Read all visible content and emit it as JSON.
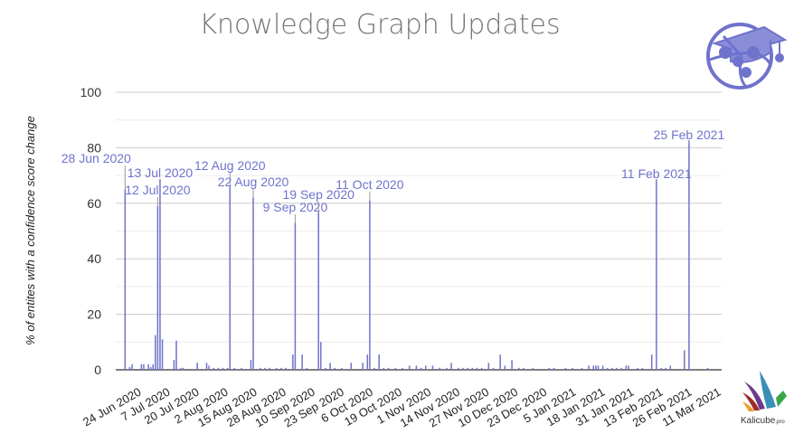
{
  "chart_data": {
    "type": "bar",
    "title": "Knowledge Graph Updates",
    "xlabel": "",
    "ylabel": "% of entites with a confidence score change",
    "ylim": [
      0,
      100
    ],
    "yticks": [
      0,
      20,
      40,
      60,
      80,
      100
    ],
    "xlim": [
      "2020-06-24",
      "2021-03-11"
    ],
    "xtick_labels": [
      "24 Jun 2020",
      "7 Jul 2020",
      "20 Jul 2020",
      "2 Aug 2020",
      "15 Aug 2020",
      "28 Aug 2020",
      "10 Sep 2020",
      "23 Sep 2020",
      "6 Oct 2020",
      "19 Oct 2020",
      "1 Nov 2020",
      "14 Nov 2020",
      "27 Nov 2020",
      "10 Dec 2020",
      "23 Dec 2020",
      "5 Jan 2021",
      "18 Jan 2021",
      "31 Jan 2021",
      "13 Feb 2021",
      "26 Feb 2021",
      "11 Mar 2021"
    ],
    "grid": true,
    "color": "#6f73cc",
    "annotations": [
      {
        "date": "2020-06-28",
        "label": "28 Jun 2020",
        "value": 65
      },
      {
        "date": "2020-07-12",
        "label": "12 Jul 2020",
        "value": 59
      },
      {
        "date": "2020-07-13",
        "label": "13 Jul 2020",
        "value": 68.7
      },
      {
        "date": "2020-08-12",
        "label": "12 Aug 2020",
        "value": 66
      },
      {
        "date": "2020-08-22",
        "label": "22 Aug 2020",
        "value": 62
      },
      {
        "date": "2020-09-09",
        "label": "9 Sep 2020",
        "value": 53
      },
      {
        "date": "2020-09-19",
        "label": "19 Sep 2020",
        "value": 56.7
      },
      {
        "date": "2020-10-11",
        "label": "11 Oct 2020",
        "value": 61
      },
      {
        "date": "2021-02-11",
        "label": "11 Feb 2021",
        "value": 68.7
      },
      {
        "date": "2021-02-25",
        "label": "25 Feb 2021",
        "value": 82.7
      }
    ],
    "points": [
      [
        "2020-06-30",
        1
      ],
      [
        "2020-07-01",
        2
      ],
      [
        "2020-07-05",
        2
      ],
      [
        "2020-07-06",
        2
      ],
      [
        "2020-07-08",
        2
      ],
      [
        "2020-07-09",
        1
      ],
      [
        "2020-07-10",
        2
      ],
      [
        "2020-07-11",
        12.5
      ],
      [
        "2020-07-14",
        11
      ],
      [
        "2020-07-19",
        3.5
      ],
      [
        "2020-07-20",
        10.5
      ],
      [
        "2020-07-22",
        0.7
      ],
      [
        "2020-07-23",
        0.7
      ],
      [
        "2020-07-29",
        2.5
      ],
      [
        "2020-08-02",
        2.5
      ],
      [
        "2020-08-03",
        1.5
      ],
      [
        "2020-08-05",
        0.7
      ],
      [
        "2020-08-07",
        0.7
      ],
      [
        "2020-08-09",
        0.7
      ],
      [
        "2020-08-11",
        0.7
      ],
      [
        "2020-08-14",
        0.7
      ],
      [
        "2020-08-17",
        0.7
      ],
      [
        "2020-08-21",
        3.5
      ],
      [
        "2020-08-25",
        0.7
      ],
      [
        "2020-08-27",
        0.7
      ],
      [
        "2020-08-29",
        0.7
      ],
      [
        "2020-09-01",
        0.7
      ],
      [
        "2020-09-03",
        0.7
      ],
      [
        "2020-09-05",
        0.7
      ],
      [
        "2020-09-08",
        5.5
      ],
      [
        "2020-09-12",
        5.5
      ],
      [
        "2020-09-14",
        0.7
      ],
      [
        "2020-09-20",
        10
      ],
      [
        "2020-09-22",
        0.7
      ],
      [
        "2020-09-24",
        2.5
      ],
      [
        "2020-09-26",
        0.7
      ],
      [
        "2020-09-29",
        0.7
      ],
      [
        "2020-10-03",
        2.5
      ],
      [
        "2020-10-08",
        2.5
      ],
      [
        "2020-10-10",
        5.5
      ],
      [
        "2020-10-13",
        0.7
      ],
      [
        "2020-10-15",
        5.5
      ],
      [
        "2020-10-17",
        0.7
      ],
      [
        "2020-10-19",
        0.7
      ],
      [
        "2020-10-22",
        0.7
      ],
      [
        "2020-10-25",
        0.7
      ],
      [
        "2020-10-28",
        1.5
      ],
      [
        "2020-10-31",
        1.5
      ],
      [
        "2020-11-02",
        0.7
      ],
      [
        "2020-11-04",
        1.5
      ],
      [
        "2020-11-07",
        1.5
      ],
      [
        "2020-11-10",
        0.7
      ],
      [
        "2020-11-13",
        0.7
      ],
      [
        "2020-11-15",
        2.5
      ],
      [
        "2020-11-18",
        0.7
      ],
      [
        "2020-11-20",
        0.7
      ],
      [
        "2020-11-22",
        0.7
      ],
      [
        "2020-11-24",
        0.7
      ],
      [
        "2020-11-26",
        0.7
      ],
      [
        "2020-11-28",
        0.7
      ],
      [
        "2020-12-01",
        2.5
      ],
      [
        "2020-12-03",
        0.7
      ],
      [
        "2020-12-06",
        5.5
      ],
      [
        "2020-12-08",
        1.5
      ],
      [
        "2020-12-11",
        3.5
      ],
      [
        "2020-12-14",
        0.7
      ],
      [
        "2020-12-16",
        0.7
      ],
      [
        "2020-12-20",
        0.7
      ],
      [
        "2020-12-27",
        0.7
      ],
      [
        "2020-12-29",
        0.7
      ],
      [
        "2021-01-03",
        0.7
      ],
      [
        "2021-01-06",
        0.7
      ],
      [
        "2021-01-10",
        0.7
      ],
      [
        "2021-01-13",
        1.5
      ],
      [
        "2021-01-15",
        1.5
      ],
      [
        "2021-01-16",
        1.5
      ],
      [
        "2021-01-17",
        1.5
      ],
      [
        "2021-01-19",
        1.5
      ],
      [
        "2021-01-21",
        0.7
      ],
      [
        "2021-01-23",
        0.7
      ],
      [
        "2021-01-25",
        0.7
      ],
      [
        "2021-01-27",
        0.7
      ],
      [
        "2021-01-29",
        1.5
      ],
      [
        "2021-01-30",
        1.5
      ],
      [
        "2021-02-03",
        0.7
      ],
      [
        "2021-02-05",
        0.7
      ],
      [
        "2021-02-09",
        5.5
      ],
      [
        "2021-02-13",
        0.7
      ],
      [
        "2021-02-15",
        0.7
      ],
      [
        "2021-02-17",
        1.5
      ],
      [
        "2021-02-23",
        7
      ],
      [
        "2021-03-05",
        0.7
      ]
    ]
  },
  "logos": {
    "top_right": "knowledge-graph-graduation-cap",
    "bottom_right": "Kalicube.pro"
  }
}
